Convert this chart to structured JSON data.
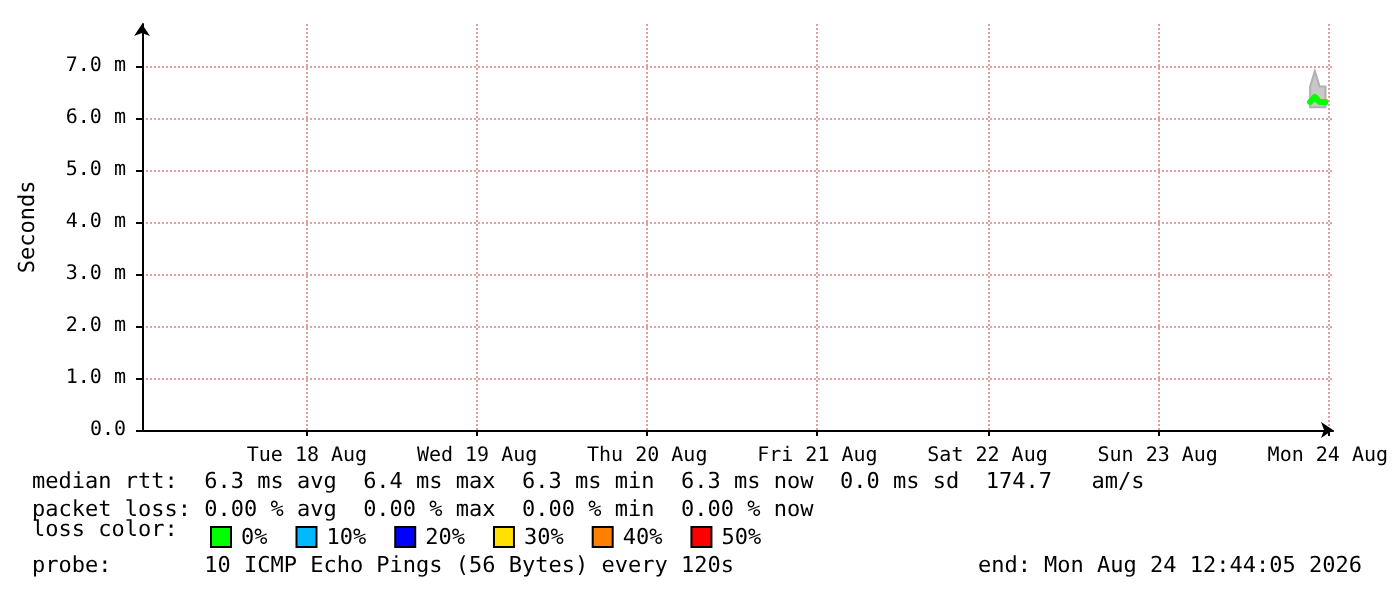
{
  "chart_data": {
    "type": "line",
    "ylabel": "Seconds",
    "legend_title": "loss color:",
    "legend": "bottom",
    "grid": true,
    "marker": "none",
    "xlim": [
      "2026-08-17T12:44",
      "2026-08-24T12:44"
    ],
    "xticks": [
      {
        "value": "2026-08-18T12:00",
        "label": "Tue 18 Aug"
      },
      {
        "value": "2026-08-19T12:00",
        "label": "Wed 19 Aug"
      },
      {
        "value": "2026-08-20T12:00",
        "label": "Thu 20 Aug"
      },
      {
        "value": "2026-08-21T12:00",
        "label": "Fri 21 Aug"
      },
      {
        "value": "2026-08-22T12:00",
        "label": "Sat 22 Aug"
      },
      {
        "value": "2026-08-23T12:00",
        "label": "Sun 23 Aug"
      },
      {
        "value": "2026-08-24T12:00",
        "label": "Mon 24 Aug"
      }
    ],
    "ylim": [
      0,
      7.8
    ],
    "yticks": [
      {
        "value": 0,
        "label": "0.0"
      },
      {
        "value": 1,
        "label": "1.0 m"
      },
      {
        "value": 2,
        "label": "2.0 m"
      },
      {
        "value": 3,
        "label": "3.0 m"
      },
      {
        "value": 4,
        "label": "4.0 m"
      },
      {
        "value": 5,
        "label": "5.0 m"
      },
      {
        "value": 6,
        "label": "6.0 m"
      },
      {
        "value": 7,
        "label": "7.0 m"
      }
    ],
    "x": [
      "2026-08-24T09:30",
      "2026-08-24T10:10",
      "2026-08-24T10:50",
      "2026-08-24T11:40"
    ],
    "series": [
      {
        "name": "0%",
        "color": "#00ff00",
        "values": [
          6.3,
          6.4,
          6.3,
          6.3
        ],
        "lower": [
          6.2,
          6.2,
          6.2,
          6.2
        ],
        "upper": [
          6.6,
          6.9,
          6.6,
          6.6
        ]
      },
      {
        "name": "10%",
        "color": "#00b8ff",
        "values": [
          null,
          null,
          null,
          null
        ]
      },
      {
        "name": "20%",
        "color": "#0000ff",
        "values": [
          null,
          null,
          null,
          null
        ]
      },
      {
        "name": "30%",
        "color": "#ffe000",
        "values": [
          null,
          null,
          null,
          null
        ]
      },
      {
        "name": "40%",
        "color": "#ff8000",
        "values": [
          null,
          null,
          null,
          null
        ]
      },
      {
        "name": "50%",
        "color": "#ff0000",
        "values": [
          null,
          null,
          null,
          null
        ]
      }
    ],
    "annotations": [
      "median rtt:  6.3 ms avg  6.4 ms max  6.3 ms min  6.3 ms now  0.0 ms sd  174.7   am/s",
      "packet loss: 0.00 % avg  0.00 % max  0.00 % min  0.00 % now",
      "probe:       10 ICMP Echo Pings (56 Bytes) every 120s",
      "end: Mon Aug 24 12:44:05 2026"
    ]
  }
}
